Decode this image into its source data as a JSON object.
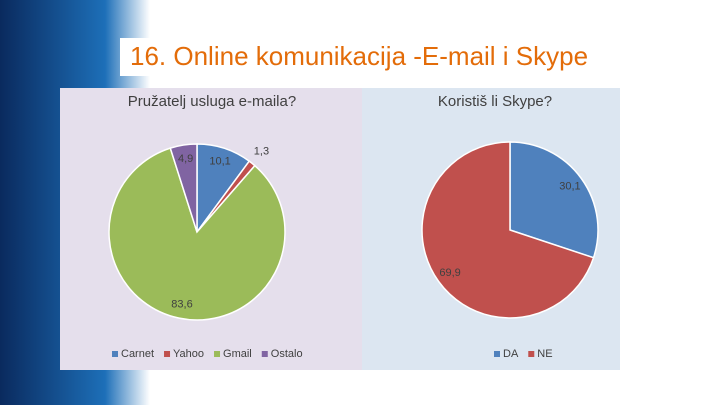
{
  "title": "16. Online komunikacija -E-mail i Skype",
  "chart_data": [
    {
      "type": "pie",
      "title": "Pružatelj usluga e-maila?",
      "categories": [
        "Carnet",
        "Yahoo",
        "Gmail",
        "Ostalo"
      ],
      "values": [
        10.1,
        1.3,
        83.6,
        4.9
      ],
      "value_labels": [
        "10,1",
        "1,3",
        "83,6",
        "4,9"
      ],
      "colors": [
        "#4f81bd",
        "#c0504d",
        "#9bbb59",
        "#8064a2"
      ],
      "legend": "bottom"
    },
    {
      "type": "pie",
      "title": "Koristiš li Skype?",
      "categories": [
        "DA",
        "NE"
      ],
      "values": [
        30.1,
        69.9
      ],
      "value_labels": [
        "30,1",
        "69,9"
      ],
      "colors": [
        "#4f81bd",
        "#c0504d"
      ],
      "legend": "bottom"
    }
  ]
}
